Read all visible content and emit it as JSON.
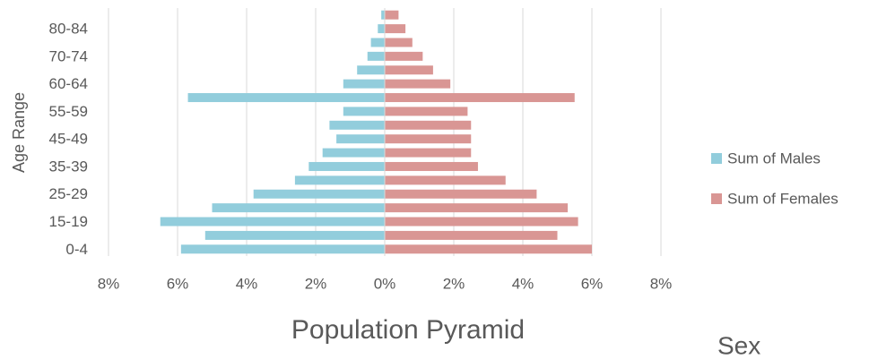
{
  "chart_data": {
    "type": "bar",
    "title": "Population Pyramid",
    "y_label": "Age Range",
    "legend_title": "Sex",
    "legend": "right",
    "grid": true,
    "categories": [
      "0-4",
      null,
      "15-19",
      null,
      "25-29",
      null,
      "35-39",
      null,
      "45-49",
      null,
      "55-59",
      null,
      "60-64",
      null,
      "70-74",
      null,
      "80-84",
      null
    ],
    "series": [
      {
        "name": "Sum of Males",
        "color": "#92cddc",
        "values": [
          -5.9,
          -5.2,
          -6.5,
          -5.0,
          -3.8,
          -2.6,
          -2.2,
          -1.8,
          -1.4,
          -1.6,
          -1.2,
          -5.7,
          -1.2,
          -0.8,
          -0.5,
          -0.4,
          -0.2,
          -0.1
        ]
      },
      {
        "name": "Sum of Females",
        "color": "#d99694",
        "values": [
          6.0,
          5.0,
          5.6,
          5.3,
          4.4,
          3.5,
          2.7,
          2.5,
          2.5,
          2.5,
          2.4,
          5.5,
          1.9,
          1.4,
          1.1,
          0.8,
          0.6,
          0.4
        ]
      }
    ],
    "xlim": [
      -8,
      8
    ],
    "xticks": [
      {
        "value": -8,
        "label": "8%"
      },
      {
        "value": -6,
        "label": "6%"
      },
      {
        "value": -4,
        "label": "4%"
      },
      {
        "value": -2,
        "label": "2%"
      },
      {
        "value": 0,
        "label": "0%"
      },
      {
        "value": 2,
        "label": "2%"
      },
      {
        "value": 4,
        "label": "4%"
      },
      {
        "value": 6,
        "label": "6%"
      },
      {
        "value": 8,
        "label": "8%"
      }
    ]
  }
}
